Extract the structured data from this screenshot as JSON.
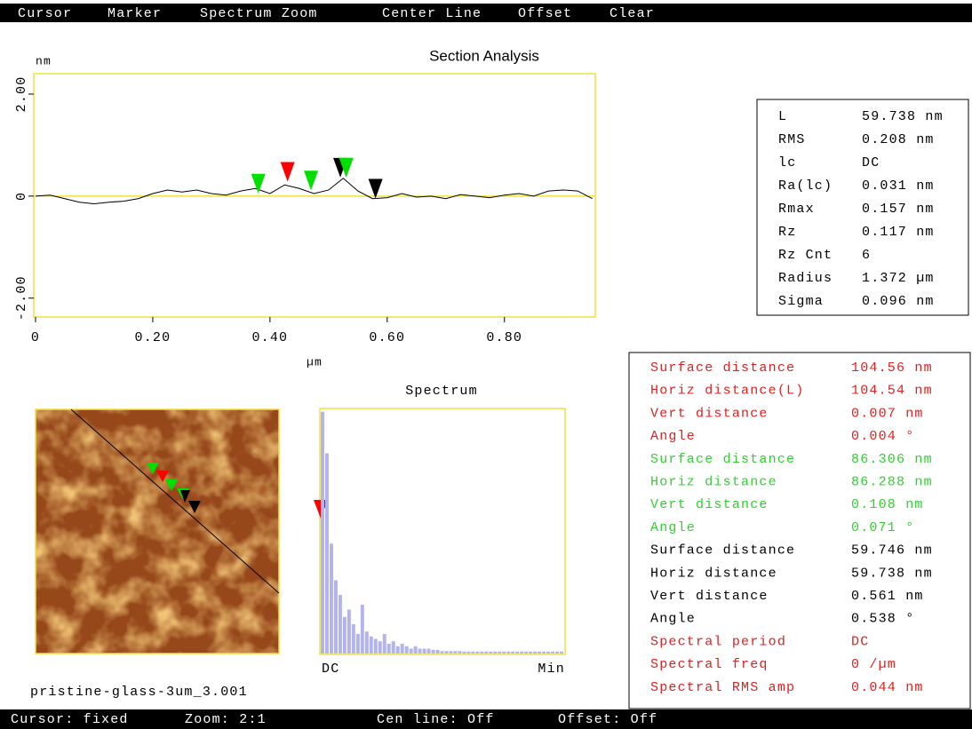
{
  "menu": [
    "Cursor",
    "Marker",
    "Spectrum Zoom",
    "Center Line",
    "Offset",
    "Clear"
  ],
  "chart_data": [
    {
      "type": "line",
      "title": "Section Analysis",
      "y_label": "nm",
      "x_label": "µm",
      "color": "#000000",
      "x": [
        0,
        0.025,
        0.05,
        0.075,
        0.1,
        0.125,
        0.15,
        0.175,
        0.2,
        0.225,
        0.25,
        0.275,
        0.3,
        0.325,
        0.35,
        0.375,
        0.4,
        0.425,
        0.45,
        0.475,
        0.5,
        0.525,
        0.55,
        0.575,
        0.6,
        0.625,
        0.65,
        0.675,
        0.7,
        0.725,
        0.75,
        0.775,
        0.8,
        0.825,
        0.85,
        0.875,
        0.9,
        0.925,
        0.95
      ],
      "values": [
        0,
        0.02,
        -0.05,
        -0.12,
        -0.15,
        -0.12,
        -0.1,
        -0.05,
        0.05,
        0.12,
        0.08,
        0.12,
        0.05,
        0.02,
        0.1,
        0.15,
        0.05,
        0.22,
        0.15,
        0.05,
        0.12,
        0.35,
        0.1,
        -0.05,
        -0.03,
        0.05,
        -0.02,
        0,
        -0.05,
        0.03,
        0,
        -0.03,
        0.02,
        0.05,
        0,
        0.1,
        0.12,
        0.1,
        -0.05
      ],
      "xlim": [
        0,
        0.955
      ],
      "ylim": [
        -2.37,
        2.4
      ],
      "xticks": [
        0,
        {
          "value": 0.2,
          "label": "0.20"
        },
        {
          "value": 0.4,
          "label": "0.40"
        },
        {
          "value": 0.6,
          "label": "0.60"
        },
        {
          "value": 0.8,
          "label": "0.80"
        }
      ],
      "yticks": [
        {
          "value": 2,
          "label": "2.00"
        },
        0,
        {
          "value": -2,
          "label": "-2.00"
        }
      ],
      "center_line": true,
      "markers": [
        {
          "x": 0.38,
          "y": 0.02,
          "color": "#00e000"
        },
        {
          "x": 0.43,
          "y": 0.25,
          "color": "#ff0000"
        },
        {
          "x": 0.47,
          "y": 0.08,
          "color": "#00e000"
        },
        {
          "x": 0.52,
          "y": 0.33,
          "color": "#000000"
        },
        {
          "x": 0.53,
          "y": 0.33,
          "color": "#ff0000"
        },
        {
          "x": 0.53,
          "y": 0.33,
          "color": "#00e000"
        },
        {
          "x": 0.58,
          "y": -0.08,
          "color": "#000000"
        }
      ]
    },
    {
      "type": "bar",
      "title": "Spectrum",
      "left_label": "DC",
      "right_label": "Min",
      "color": "#b4b4ec",
      "values": [
        99,
        82,
        45,
        30,
        24,
        15,
        18,
        12,
        8,
        20,
        9,
        7,
        6,
        5,
        8,
        4,
        5,
        3,
        4,
        3,
        2,
        3,
        2,
        2,
        2,
        1.5,
        1.5,
        1,
        1,
        1,
        1,
        1,
        0.8,
        0.8,
        0.8,
        0.8,
        0.8,
        0.8,
        0.8,
        0.8,
        0.8,
        0.8,
        0.8,
        0.8,
        0.8,
        0.8,
        0.8,
        0.8,
        0.8,
        0.8,
        0.8,
        0.8,
        0.8,
        0.8,
        0.8
      ],
      "ylim": [
        0,
        100
      ]
    }
  ],
  "stats": {
    "rows": [
      [
        "L",
        "59.738 nm"
      ],
      [
        "RMS",
        "0.208 nm"
      ],
      [
        "lc",
        "DC"
      ],
      [
        "Ra(lc)",
        "0.031 nm"
      ],
      [
        "Rmax",
        "0.157 nm"
      ],
      [
        "Rz",
        "0.117 nm"
      ],
      [
        "Rz Cnt",
        "6"
      ],
      [
        "Radius",
        "1.372 µm"
      ],
      [
        "Sigma",
        "0.096 nm"
      ]
    ]
  },
  "measurements": {
    "rows": [
      {
        "label": "Surface distance",
        "value": "104.56 nm",
        "color": "#e02020"
      },
      {
        "label": "Horiz distance(L)",
        "value": "104.54 nm",
        "color": "#e02020"
      },
      {
        "label": "Vert distance",
        "value": "0.007 nm",
        "color": "#e02020"
      },
      {
        "label": "Angle",
        "value": "0.004 °",
        "color": "#e02020"
      },
      {
        "label": "Surface distance",
        "value": "86.306 nm",
        "color": "#30d030"
      },
      {
        "label": "Horiz distance",
        "value": "86.288 nm",
        "color": "#30d030"
      },
      {
        "label": "Vert distance",
        "value": "0.108 nm",
        "color": "#30d030"
      },
      {
        "label": "Angle",
        "value": "0.071 °",
        "color": "#30d030"
      },
      {
        "label": "Surface distance",
        "value": "59.746 nm",
        "color": "#000000"
      },
      {
        "label": "Horiz distance",
        "value": "59.738 nm",
        "color": "#000000"
      },
      {
        "label": "Vert distance",
        "value": "0.561 nm",
        "color": "#000000"
      },
      {
        "label": "Angle",
        "value": "0.538 °",
        "color": "#000000"
      },
      {
        "label": "Spectral period",
        "value": "DC",
        "color": "#e02020"
      },
      {
        "label": "Spectral freq",
        "value": "0 /µm",
        "color": "#e02020"
      },
      {
        "label": "Spectral RMS amp",
        "value": "0.044 nm",
        "color": "#e02020"
      }
    ]
  },
  "image": {
    "caption": "pristine-glass-3um_3.001"
  },
  "status": [
    "Cursor: fixed",
    "Zoom: 2:1",
    "Cen line: Off",
    "Offset: Off"
  ]
}
